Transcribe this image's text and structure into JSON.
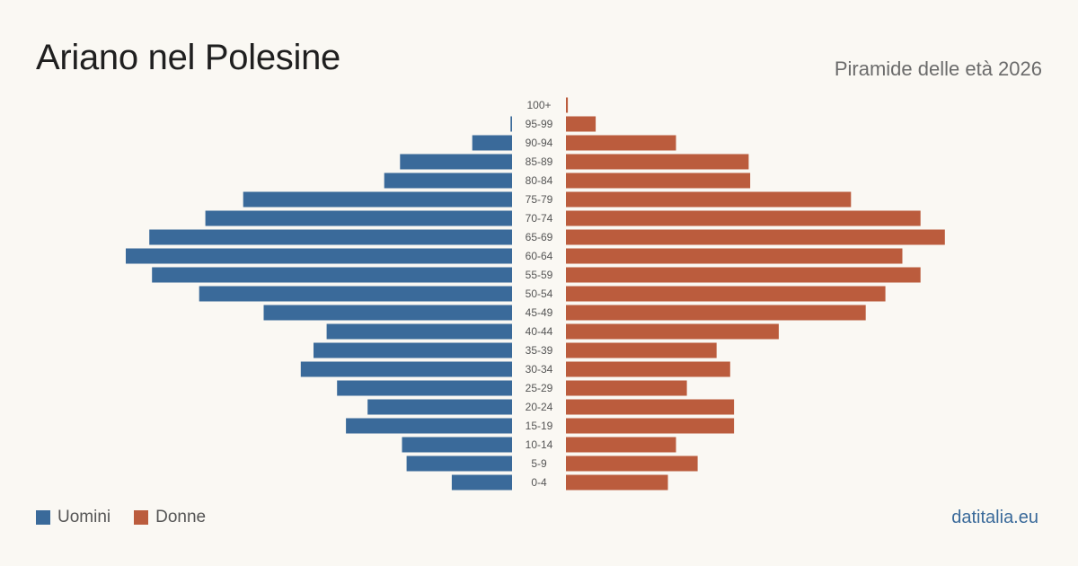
{
  "title": "Ariano nel Polesine",
  "subtitle": "Piramide delle età 2026",
  "legend": {
    "men": "Uomini",
    "women": "Donne"
  },
  "source": "datitalia.eu",
  "colors": {
    "men": "#3a6a9a",
    "women": "#bb5c3d",
    "background": "#faf8f3",
    "age_label": "#555555",
    "source": "#3a6a9a"
  },
  "chart_data": {
    "type": "bar",
    "orientation": "horizontal-pyramid",
    "units": "relative (largest bar = 100)",
    "categories": [
      "100+",
      "95-99",
      "90-94",
      "85-89",
      "80-84",
      "75-79",
      "70-74",
      "65-69",
      "60-64",
      "55-59",
      "50-54",
      "45-49",
      "40-44",
      "35-39",
      "30-34",
      "25-29",
      "20-24",
      "15-19",
      "10-14",
      "5-9",
      "0-4"
    ],
    "series": [
      {
        "name": "Uomini",
        "values": [
          0,
          0.4,
          10.3,
          29.0,
          33.1,
          69.6,
          79.4,
          93.9,
          100,
          93.2,
          81.0,
          64.3,
          48.0,
          51.4,
          54.7,
          45.3,
          37.4,
          43.0,
          28.5,
          27.3,
          15.6
        ]
      },
      {
        "name": "Donne",
        "values": [
          0.5,
          7.7,
          28.5,
          47.3,
          47.7,
          73.8,
          91.8,
          98.1,
          87.1,
          91.8,
          82.7,
          77.6,
          55.1,
          39.0,
          42.5,
          31.3,
          43.5,
          43.5,
          28.5,
          34.1,
          26.4
        ]
      }
    ]
  }
}
